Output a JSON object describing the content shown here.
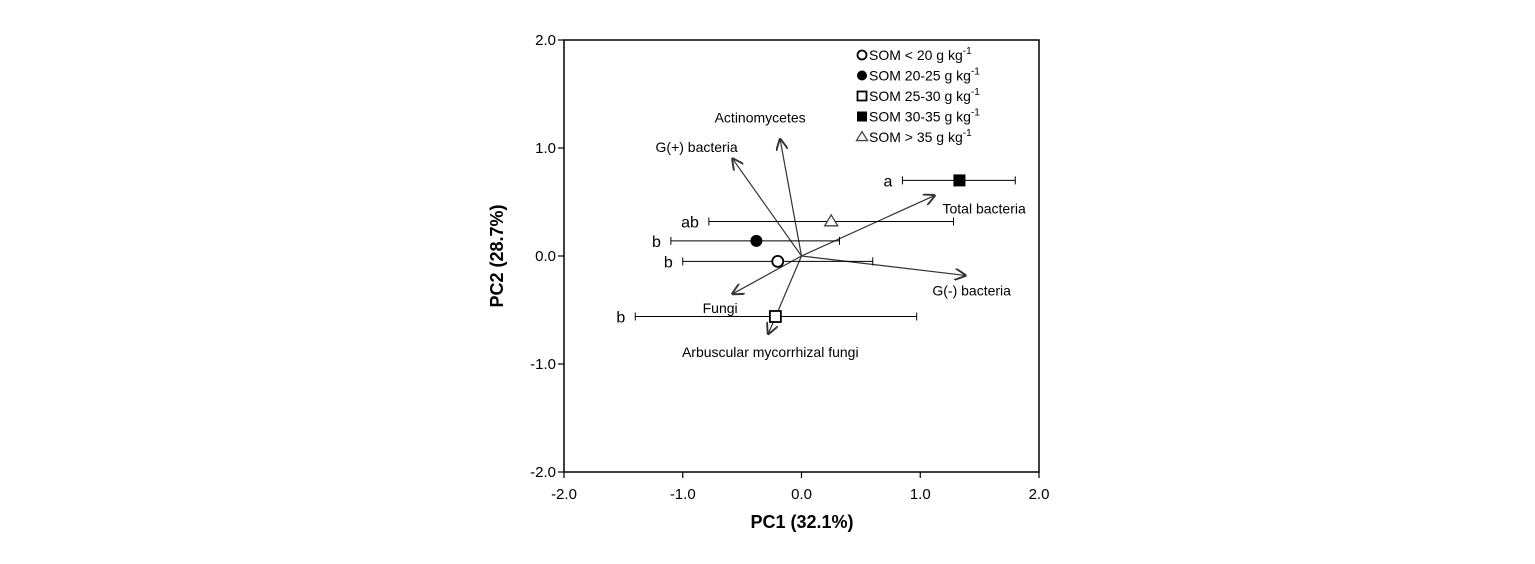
{
  "chart_data": {
    "type": "scatter",
    "subtype": "PCA biplot",
    "xlabel": "PC1 (32.1%)",
    "ylabel": "PC2 (28.7%)",
    "xlim": [
      -2.0,
      2.0
    ],
    "ylim": [
      -2.0,
      2.0
    ],
    "x_ticks": [
      "-2.0",
      "-1.0",
      "0.0",
      "1.0",
      "2.0"
    ],
    "y_ticks": [
      "-2.0",
      "-1.0",
      "0.0",
      "1.0",
      "2.0"
    ],
    "grid": false,
    "legend_position": "top-right",
    "series": [
      {
        "name": "SOM < 20 g kg",
        "sup": "-1",
        "marker": "circle-open",
        "x": -0.2,
        "y": -0.05,
        "xerr_low": -1.0,
        "xerr_high": 0.6,
        "group": "b"
      },
      {
        "name": "SOM 20-25 g kg",
        "sup": "-1",
        "marker": "circle-filled",
        "x": -0.38,
        "y": 0.14,
        "xerr_low": -1.1,
        "xerr_high": 0.32,
        "group": "b"
      },
      {
        "name": "SOM 25-30 g kg",
        "sup": "-1",
        "marker": "square-open",
        "x": -0.22,
        "y": -0.56,
        "xerr_low": -1.4,
        "xerr_high": 0.97,
        "group": "b"
      },
      {
        "name": "SOM 30-35 g kg",
        "sup": "-1",
        "marker": "square-filled",
        "x": 1.33,
        "y": 0.7,
        "xerr_low": 0.85,
        "xerr_high": 1.8,
        "group": "a"
      },
      {
        "name": "SOM > 35 g kg",
        "sup": "-1",
        "marker": "triangle-open",
        "x": 0.25,
        "y": 0.32,
        "xerr_low": -0.78,
        "xerr_high": 1.28,
        "group": "ab"
      }
    ],
    "loadings": [
      {
        "name": "Actinomycetes",
        "x": -0.18,
        "y": 1.08
      },
      {
        "name": "G(+) bacteria",
        "x": -0.58,
        "y": 0.9
      },
      {
        "name": "Total bacteria",
        "x": 1.12,
        "y": 0.56
      },
      {
        "name": "G(-) bacteria",
        "x": 1.38,
        "y": -0.18
      },
      {
        "name": "Fungi",
        "x": -0.58,
        "y": -0.35
      },
      {
        "name": "Arbuscular mycorrhizal fungi",
        "x": -0.28,
        "y": -0.72
      }
    ]
  }
}
